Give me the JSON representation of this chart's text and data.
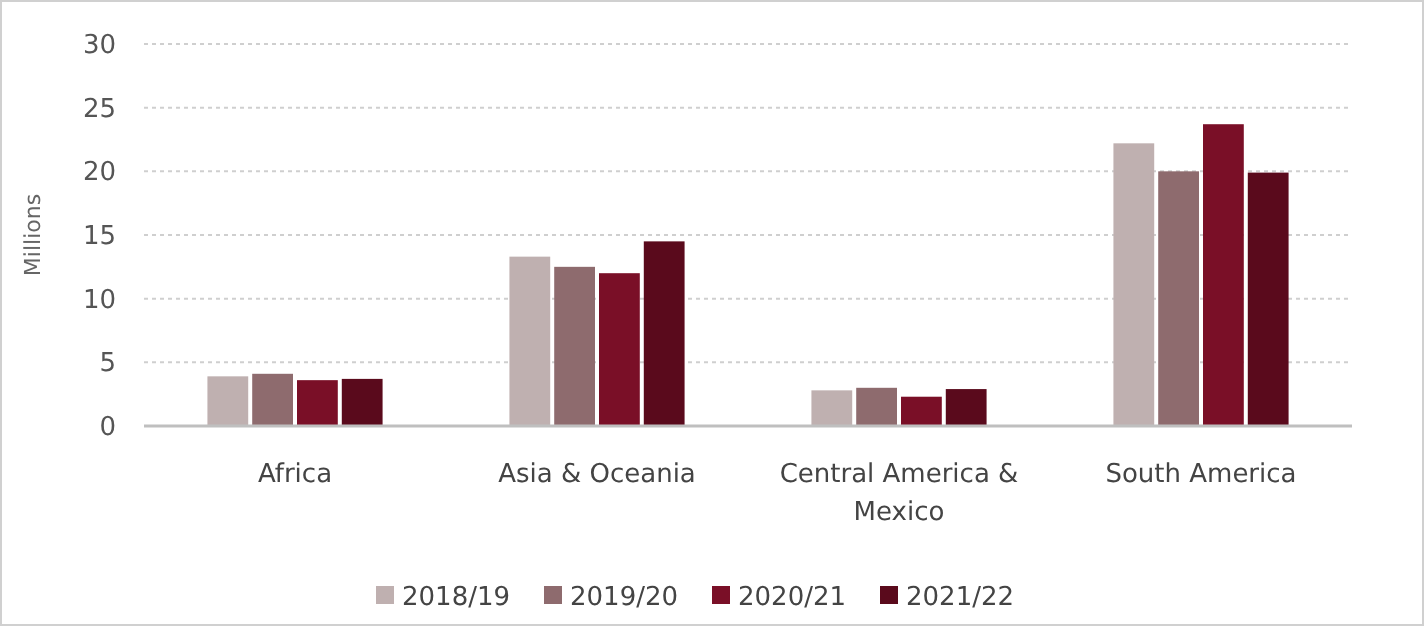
{
  "chart_data": {
    "type": "bar",
    "ylabel": "Millions",
    "categories": [
      "Africa",
      "Asia & Oceania",
      "Central America & Mexico",
      "South America"
    ],
    "series": [
      {
        "name": "2018/19",
        "color": "#bfb0b0",
        "values": [
          3.9,
          13.3,
          2.8,
          22.2
        ]
      },
      {
        "name": "2019/20",
        "color": "#8e6b6e",
        "values": [
          4.1,
          12.5,
          3.0,
          20.0
        ]
      },
      {
        "name": "2020/21",
        "color": "#7a0f27",
        "values": [
          3.6,
          12.0,
          2.3,
          23.7
        ]
      },
      {
        "name": "2021/22",
        "color": "#5a0a1c",
        "values": [
          3.7,
          14.5,
          2.9,
          19.9
        ]
      }
    ],
    "ylim": [
      0,
      30
    ],
    "yticks": [
      0,
      5,
      10,
      15,
      20,
      25,
      30
    ],
    "grid": "y",
    "legend": "bottom"
  }
}
